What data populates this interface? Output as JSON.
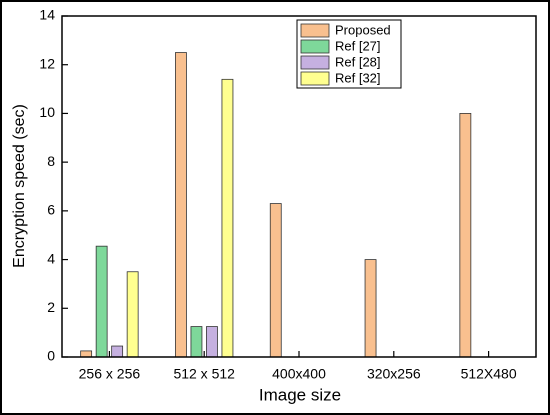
{
  "chart_data": {
    "type": "bar",
    "x_label": "Image size",
    "y_label": "Encryption speed (sec)",
    "categories": [
      "256 x 256",
      "512 x 512",
      "400x400",
      "320x256",
      "512X480"
    ],
    "series": [
      {
        "name": "Proposed",
        "color": "#f9c08f",
        "values": [
          0.25,
          12.5,
          6.3,
          4.0,
          10.0
        ]
      },
      {
        "name": "Ref [27]",
        "color": "#7ed89a",
        "values": [
          4.55,
          1.25,
          null,
          null,
          null
        ]
      },
      {
        "name": "Ref [28]",
        "color": "#c5b0e0",
        "values": [
          0.45,
          1.25,
          null,
          null,
          null
        ]
      },
      {
        "name": "Ref [32]",
        "color": "#ffff90",
        "values": [
          3.5,
          11.4,
          null,
          null,
          null
        ]
      }
    ],
    "ylim": [
      0,
      14
    ],
    "yticks": [
      0,
      2,
      4,
      6,
      8,
      10,
      12,
      14
    ],
    "legend": "upper-center"
  }
}
